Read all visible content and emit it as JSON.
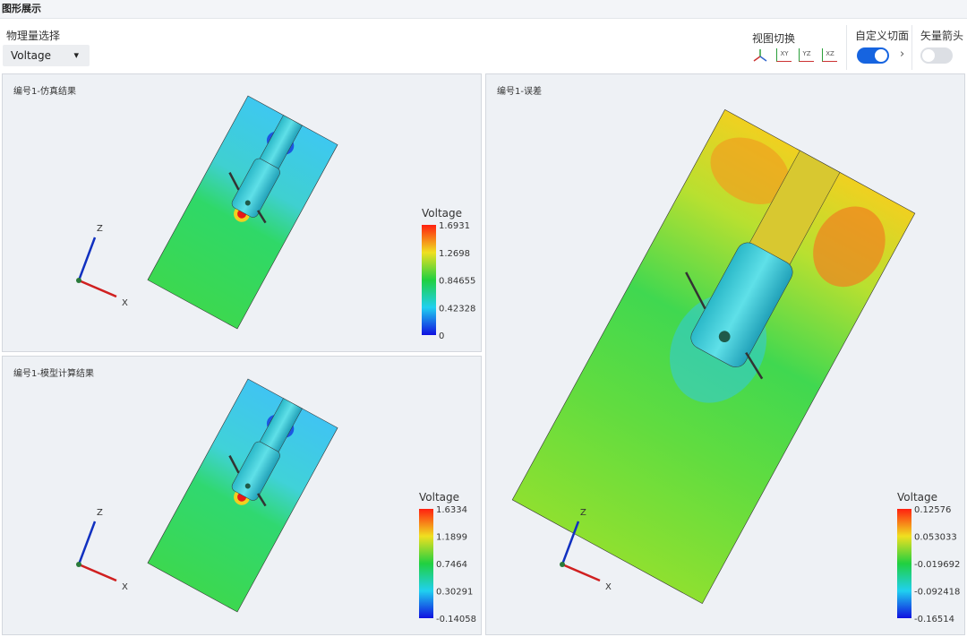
{
  "header": {
    "title": "图形展示"
  },
  "toolbar": {
    "quantity_label": "物理量选择",
    "quantity_value": "Voltage",
    "view_switch_label": "视图切换",
    "view_buttons": [
      "XY",
      "YZ",
      "XZ"
    ],
    "custom_section_label": "自定义切面",
    "vector_arrow_label": "矢量箭头"
  },
  "panels": [
    {
      "title": "编号1-仿真结果",
      "legend": {
        "title": "Voltage",
        "ticks": [
          1.6931,
          1.2698,
          0.84655,
          0.42328,
          0
        ]
      },
      "axes": [
        "Z",
        "X"
      ]
    },
    {
      "title": "编号1-模型计算结果",
      "legend": {
        "title": "Voltage",
        "ticks": [
          1.6334,
          1.1899,
          0.7464,
          0.30291,
          -0.14058
        ]
      },
      "axes": [
        "Z",
        "X"
      ]
    },
    {
      "title": "编号1-误差",
      "legend": {
        "title": "Voltage",
        "ticks": [
          0.12576,
          0.053033,
          -0.019692,
          -0.092418,
          -0.16514
        ]
      },
      "axes": [
        "Z",
        "X"
      ]
    }
  ]
}
